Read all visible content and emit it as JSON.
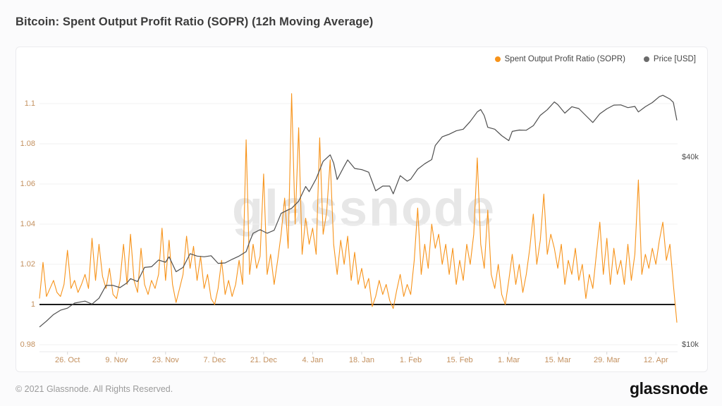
{
  "page": {
    "title": "Bitcoin: Spent Output Profit Ratio (SOPR) (12h Moving Average)"
  },
  "legend": {
    "items": [
      {
        "label": "Spent Output Profit Ratio (SOPR)",
        "color": "#f7931a"
      },
      {
        "label": "Price [USD]",
        "color": "#6b6b6b"
      }
    ]
  },
  "watermark": "glassnode",
  "footer": {
    "copyright": "© 2021 Glassnode. All Rights Reserved.",
    "brand": "glassnode"
  },
  "chart_data": {
    "type": "line",
    "title": "Bitcoin: Spent Output Profit Ratio (SOPR) (12h Moving Average)",
    "grid": "horizontal",
    "legend_position": "top-right",
    "x_axis": {
      "start_date": "2020-10-18",
      "end_date": "2021-04-18",
      "unit": "day_index_from_start",
      "range_days": [
        0,
        182
      ],
      "tick_days": [
        8,
        22,
        36,
        50,
        64,
        78,
        92,
        106,
        120,
        134,
        148,
        162,
        176
      ],
      "tick_labels": [
        "26. Oct",
        "9. Nov",
        "23. Nov",
        "7. Dec",
        "21. Dec",
        "4. Jan",
        "18. Jan",
        "1. Feb",
        "15. Feb",
        "1. Mar",
        "15. Mar",
        "29. Mar",
        "12. Apr"
      ]
    },
    "y_axis_left": {
      "name": "SOPR",
      "scale": "linear",
      "ticks": [
        1.1,
        1.08,
        1.06,
        1.04,
        1.02,
        1,
        0.98
      ],
      "tick_labels": [
        "1.1",
        "1.08",
        "1.06",
        "1.04",
        "1.02",
        "1",
        "0.98"
      ],
      "range": [
        0.978,
        1.112
      ]
    },
    "y_axis_right": {
      "name": "Price [USD]",
      "scale": "log",
      "ticks": [
        {
          "label": "$40k",
          "value": 40000
        },
        {
          "label": "$10k",
          "value": 10000
        }
      ]
    },
    "baseline": {
      "value": 1,
      "color": "#1b1b1b"
    },
    "series": [
      {
        "name": "Spent Output Profit Ratio (SOPR)",
        "axis": "left",
        "color": "#f7931a",
        "day_step": 1,
        "values": [
          1.003,
          1.021,
          1.004,
          1.008,
          1.012,
          1.006,
          1.004,
          1.01,
          1.027,
          1.008,
          1.012,
          1.006,
          1.01,
          1.015,
          1.008,
          1.033,
          1.012,
          1.03,
          1.014,
          1.008,
          1.018,
          1.005,
          1.003,
          1.012,
          1.03,
          1.01,
          1.035,
          1.012,
          1.006,
          1.028,
          1.01,
          1.005,
          1.012,
          1.008,
          1.015,
          1.038,
          1.012,
          1.032,
          1.01,
          1.001,
          1.008,
          1.015,
          1.034,
          1.018,
          1.029,
          1.012,
          1.024,
          1.008,
          1.015,
          1.003,
          1.0,
          1.008,
          1.022,
          1.005,
          1.012,
          1.004,
          1.01,
          1.022,
          1.01,
          1.082,
          1.015,
          1.03,
          1.018,
          1.024,
          1.065,
          1.015,
          1.025,
          1.01,
          1.022,
          1.035,
          1.053,
          1.028,
          1.105,
          1.04,
          1.088,
          1.025,
          1.043,
          1.03,
          1.038,
          1.025,
          1.083,
          1.035,
          1.046,
          1.072,
          1.03,
          1.015,
          1.032,
          1.02,
          1.034,
          1.012,
          1.026,
          1.01,
          1.018,
          1.008,
          1.013,
          0.999,
          1.004,
          1.012,
          1.005,
          1.01,
          1.002,
          0.998,
          1.007,
          1.015,
          1.004,
          1.01,
          1.005,
          1.022,
          1.048,
          1.015,
          1.03,
          1.018,
          1.04,
          1.028,
          1.035,
          1.02,
          1.03,
          1.015,
          1.028,
          1.01,
          1.022,
          1.012,
          1.03,
          1.02,
          1.035,
          1.073,
          1.03,
          1.018,
          1.047,
          1.015,
          1.008,
          1.02,
          1.005,
          1.0,
          1.012,
          1.025,
          1.01,
          1.02,
          1.006,
          1.015,
          1.028,
          1.045,
          1.02,
          1.032,
          1.055,
          1.025,
          1.035,
          1.028,
          1.018,
          1.03,
          1.01,
          1.022,
          1.015,
          1.028,
          1.012,
          1.02,
          1.003,
          1.015,
          1.008,
          1.025,
          1.041,
          1.015,
          1.033,
          1.01,
          1.028,
          1.015,
          1.022,
          1.01,
          1.03,
          1.012,
          1.025,
          1.062,
          1.015,
          1.025,
          1.018,
          1.028,
          1.02,
          1.032,
          1.041,
          1.022,
          1.03,
          1.01,
          0.991
        ]
      },
      {
        "name": "Price [USD]",
        "axis": "right",
        "color": "#4f4f4f",
        "points": [
          [
            0,
            11400
          ],
          [
            2,
            11900
          ],
          [
            4,
            12500
          ],
          [
            6,
            12900
          ],
          [
            8,
            13100
          ],
          [
            10,
            13600
          ],
          [
            13,
            13800
          ],
          [
            15,
            13500
          ],
          [
            17,
            14100
          ],
          [
            19,
            15500
          ],
          [
            21,
            15500
          ],
          [
            23,
            15250
          ],
          [
            25,
            15800
          ],
          [
            26,
            16300
          ],
          [
            28,
            15950
          ],
          [
            30,
            17700
          ],
          [
            32,
            17800
          ],
          [
            34,
            18700
          ],
          [
            36,
            18400
          ],
          [
            37,
            19150
          ],
          [
            39,
            17150
          ],
          [
            41,
            17700
          ],
          [
            43,
            19600
          ],
          [
            45,
            19250
          ],
          [
            47,
            19150
          ],
          [
            49,
            19300
          ],
          [
            51,
            18250
          ],
          [
            53,
            18300
          ],
          [
            55,
            18800
          ],
          [
            57,
            19250
          ],
          [
            59,
            19900
          ],
          [
            60,
            21400
          ],
          [
            61,
            22800
          ],
          [
            63,
            23400
          ],
          [
            65,
            22800
          ],
          [
            67,
            23300
          ],
          [
            69,
            26400
          ],
          [
            71,
            27100
          ],
          [
            72,
            27400
          ],
          [
            74,
            28900
          ],
          [
            76,
            32200
          ],
          [
            77,
            31000
          ],
          [
            79,
            34100
          ],
          [
            81,
            38800
          ],
          [
            83,
            40700
          ],
          [
            84,
            38300
          ],
          [
            85,
            33900
          ],
          [
            87,
            37400
          ],
          [
            88,
            39200
          ],
          [
            90,
            36800
          ],
          [
            92,
            36500
          ],
          [
            94,
            35800
          ],
          [
            96,
            31200
          ],
          [
            98,
            32300
          ],
          [
            100,
            32300
          ],
          [
            101,
            30500
          ],
          [
            103,
            34900
          ],
          [
            105,
            33500
          ],
          [
            106,
            34000
          ],
          [
            108,
            36600
          ],
          [
            110,
            38100
          ],
          [
            112,
            39300
          ],
          [
            113,
            43600
          ],
          [
            115,
            46500
          ],
          [
            117,
            47400
          ],
          [
            119,
            48600
          ],
          [
            121,
            49200
          ],
          [
            123,
            52100
          ],
          [
            125,
            55900
          ],
          [
            126,
            56900
          ],
          [
            127,
            54400
          ],
          [
            128,
            49900
          ],
          [
            130,
            49200
          ],
          [
            132,
            46900
          ],
          [
            134,
            45200
          ],
          [
            135,
            48400
          ],
          [
            137,
            48900
          ],
          [
            139,
            48800
          ],
          [
            141,
            50500
          ],
          [
            143,
            54500
          ],
          [
            145,
            56800
          ],
          [
            147,
            60200
          ],
          [
            148,
            59000
          ],
          [
            150,
            55400
          ],
          [
            152,
            58100
          ],
          [
            154,
            57300
          ],
          [
            156,
            54400
          ],
          [
            158,
            51700
          ],
          [
            160,
            55100
          ],
          [
            162,
            57200
          ],
          [
            164,
            58800
          ],
          [
            166,
            58900
          ],
          [
            168,
            57700
          ],
          [
            170,
            58200
          ],
          [
            171,
            55900
          ],
          [
            173,
            58100
          ],
          [
            175,
            59900
          ],
          [
            177,
            62600
          ],
          [
            178,
            63200
          ],
          [
            180,
            61500
          ],
          [
            181,
            60000
          ],
          [
            182,
            52500
          ]
        ]
      }
    ]
  }
}
